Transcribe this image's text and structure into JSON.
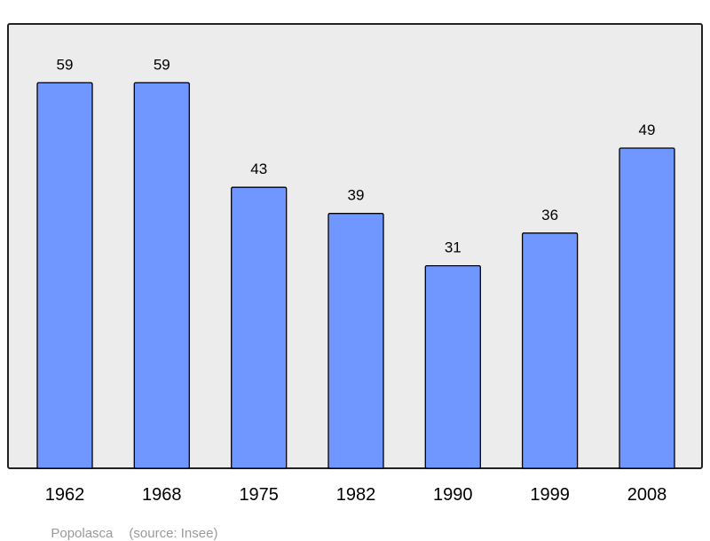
{
  "chart_data": {
    "type": "bar",
    "categories": [
      "1962",
      "1968",
      "1975",
      "1982",
      "1990",
      "1999",
      "2008"
    ],
    "values": [
      59,
      59,
      43,
      39,
      31,
      36,
      49
    ],
    "data_labels": [
      "59",
      "59",
      "43",
      "39",
      "31",
      "36",
      "49"
    ],
    "title": "",
    "xlabel": "",
    "ylabel": "",
    "ylim": [
      0,
      68
    ],
    "grid": false,
    "colors": {
      "bar": "#7097ff",
      "bar_stroke": "#000000",
      "plot_background": "#ececec",
      "frame": "#222222"
    }
  },
  "caption": {
    "place": "Popolasca",
    "source": "(source: Insee)"
  }
}
